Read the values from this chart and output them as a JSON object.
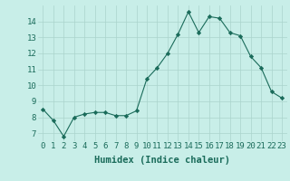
{
  "x": [
    0,
    1,
    2,
    3,
    4,
    5,
    6,
    7,
    8,
    9,
    10,
    11,
    12,
    13,
    14,
    15,
    16,
    17,
    18,
    19,
    20,
    21,
    22,
    23
  ],
  "y": [
    8.5,
    7.8,
    6.8,
    8.0,
    8.2,
    8.3,
    8.3,
    8.1,
    8.1,
    8.4,
    10.4,
    11.1,
    12.0,
    13.2,
    14.6,
    13.3,
    14.3,
    14.2,
    13.3,
    13.1,
    11.8,
    11.1,
    9.6,
    9.2
  ],
  "line_color": "#1a6b5a",
  "marker": "D",
  "marker_size": 2.2,
  "bg_color": "#c8eee8",
  "grid_color": "#aad4cc",
  "xlabel": "Humidex (Indice chaleur)",
  "ylabel_ticks": [
    7,
    8,
    9,
    10,
    11,
    12,
    13,
    14
  ],
  "xlim": [
    -0.5,
    23.5
  ],
  "ylim": [
    6.5,
    15.0
  ],
  "xtick_labels": [
    "0",
    "1",
    "2",
    "3",
    "4",
    "5",
    "6",
    "7",
    "8",
    "9",
    "10",
    "11",
    "12",
    "13",
    "14",
    "15",
    "16",
    "17",
    "18",
    "19",
    "20",
    "21",
    "22",
    "23"
  ],
  "tick_color": "#1a6b5a",
  "label_fontsize": 7.5,
  "tick_fontsize": 6.5
}
